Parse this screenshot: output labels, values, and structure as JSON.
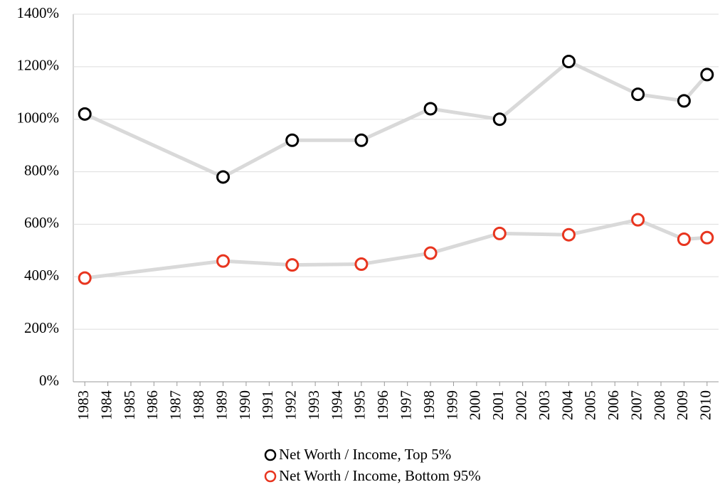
{
  "chart_data": {
    "type": "line",
    "x": [
      1983,
      1989,
      1992,
      1995,
      1998,
      2001,
      2004,
      2007,
      2009,
      2010
    ],
    "xlim": [
      1982.5,
      2010.5
    ],
    "xticks": [
      1983,
      1984,
      1985,
      1986,
      1987,
      1988,
      1989,
      1990,
      1991,
      1992,
      1993,
      1994,
      1995,
      1996,
      1997,
      1998,
      1999,
      2000,
      2001,
      2002,
      2003,
      2004,
      2005,
      2006,
      2007,
      2008,
      2009,
      2010
    ],
    "ylim": [
      0,
      1400
    ],
    "yticks": [
      {
        "value": 0,
        "label": "0%"
      },
      {
        "value": 200,
        "label": "200%"
      },
      {
        "value": 400,
        "label": "400%"
      },
      {
        "value": 600,
        "label": "600%"
      },
      {
        "value": 800,
        "label": "800%"
      },
      {
        "value": 1000,
        "label": "1000%"
      },
      {
        "value": 1200,
        "label": "1200%"
      },
      {
        "value": 1400,
        "label": "1400%"
      }
    ],
    "grid": true,
    "line_color": "#d9d9d9",
    "legend": "bottom",
    "series": [
      {
        "name": "Net Worth / Income, Top 5%",
        "color": "#000000",
        "values": [
          1020,
          780,
          920,
          920,
          1040,
          1000,
          1220,
          1095,
          1070,
          1170
        ]
      },
      {
        "name": "Net Worth / Income, Bottom 95%",
        "color": "#e8351f",
        "values": [
          395,
          460,
          445,
          448,
          490,
          565,
          560,
          617,
          543,
          549
        ]
      }
    ]
  }
}
